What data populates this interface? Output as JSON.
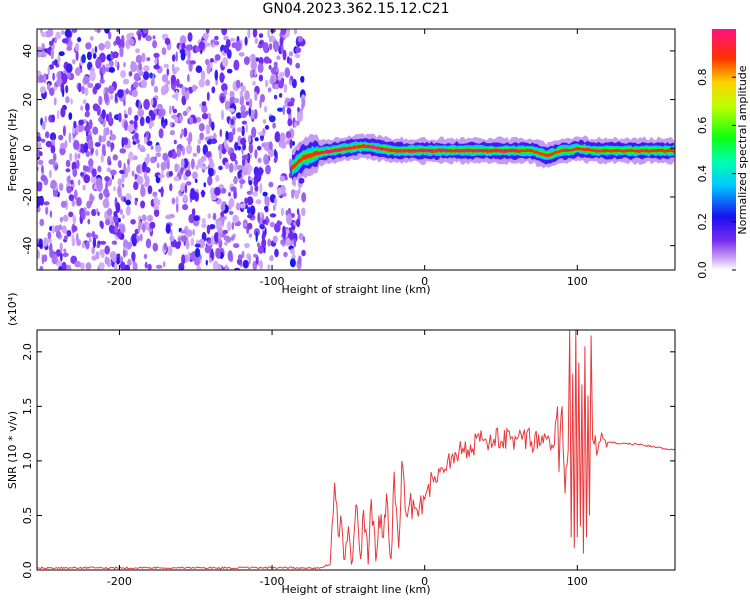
{
  "title": "GN04.2023.362.15.12.C21",
  "colorbar": {
    "label": "Normalized spectral amplitude",
    "ticks": [
      "0.0",
      "0.2",
      "0.4",
      "0.6",
      "0.8"
    ],
    "tick_values": [
      0.0,
      0.2,
      0.4,
      0.6,
      0.8
    ],
    "range": [
      0,
      1
    ]
  },
  "chart_data": [
    {
      "type": "heatmap",
      "xlabel": "Height of straight line (km)",
      "ylabel": "Frequency (Hz)",
      "xlim": [
        -254,
        164
      ],
      "ylim": [
        -50,
        49
      ],
      "xticks": [
        -200,
        -100,
        0,
        100
      ],
      "xtick_labels": [
        "-200",
        "-100",
        "0",
        "100"
      ],
      "yticks": [
        -40,
        -20,
        0,
        20,
        40
      ],
      "ytick_labels": [
        "-40",
        "-20",
        "0",
        "20",
        "40"
      ],
      "noise_region_x": [
        -254,
        -79
      ],
      "ridge": {
        "x": [
          -87,
          -80,
          -70,
          -60,
          -50,
          -40,
          -30,
          -20,
          -10,
          0,
          20,
          40,
          60,
          70,
          75,
          80,
          85,
          90,
          95,
          100,
          110,
          130,
          164
        ],
        "y": [
          -8,
          -4,
          -2,
          -1,
          0,
          1,
          0,
          -1,
          -1,
          -1,
          -1,
          -1,
          -1,
          -1,
          -2,
          -3,
          -2,
          -1,
          -1,
          0,
          -1,
          -1,
          -1
        ]
      },
      "colormap": "rainbow"
    },
    {
      "type": "line",
      "xlabel": "Height of straight line (km)",
      "ylabel": "SNR (10 * v/v)",
      "y_multiplier": "(x10⁴)",
      "xlim": [
        -254,
        164
      ],
      "ylim": [
        0,
        2.2
      ],
      "xticks": [
        -200,
        -100,
        0,
        100
      ],
      "xtick_labels": [
        "-200",
        "-100",
        "0",
        "100"
      ],
      "yticks": [
        0,
        0.5,
        1.0,
        1.5,
        2.0
      ],
      "ytick_labels": [
        "0.0",
        "0.5",
        "1.0",
        "1.5",
        "2.0"
      ],
      "series": [
        {
          "color": "#e8383b",
          "x": [
            -254,
            -200,
            -150,
            -100,
            -70,
            -62,
            -60,
            -59,
            -56,
            -55,
            -53,
            -50,
            -48,
            -45,
            -42,
            -40,
            -37,
            -35,
            -32,
            -30,
            -27,
            -25,
            -22,
            -20,
            -17,
            -15,
            -12,
            -10,
            -5,
            0,
            5,
            10,
            15,
            20,
            25,
            30,
            40,
            50,
            60,
            70,
            80,
            85,
            87,
            88,
            90,
            92,
            94,
            95,
            96,
            97,
            98,
            99,
            100,
            101,
            102,
            103,
            104,
            105,
            106,
            107,
            108,
            109,
            110,
            111,
            120,
            140,
            164
          ],
          "y": [
            0.02,
            0.02,
            0.02,
            0.02,
            0.02,
            0.05,
            0.5,
            0.8,
            0.3,
            0.5,
            0.1,
            0.4,
            0.05,
            0.6,
            0.1,
            0.55,
            0.05,
            0.65,
            0.08,
            0.5,
            0.3,
            0.7,
            0.1,
            0.9,
            0.2,
            1.0,
            0.5,
            0.6,
            0.55,
            0.65,
            0.85,
            0.9,
            1.0,
            1.08,
            1.12,
            1.15,
            1.2,
            1.18,
            1.2,
            1.18,
            1.2,
            1.15,
            1.5,
            0.9,
            1.5,
            0.7,
            1.1,
            2.2,
            0.3,
            1.8,
            0.2,
            2.2,
            0.3,
            1.9,
            0.4,
            1.7,
            0.15,
            2.05,
            0.3,
            1.6,
            0.5,
            2.15,
            1.2,
            1.15,
            1.17,
            1.15,
            1.1
          ]
        }
      ]
    }
  ]
}
